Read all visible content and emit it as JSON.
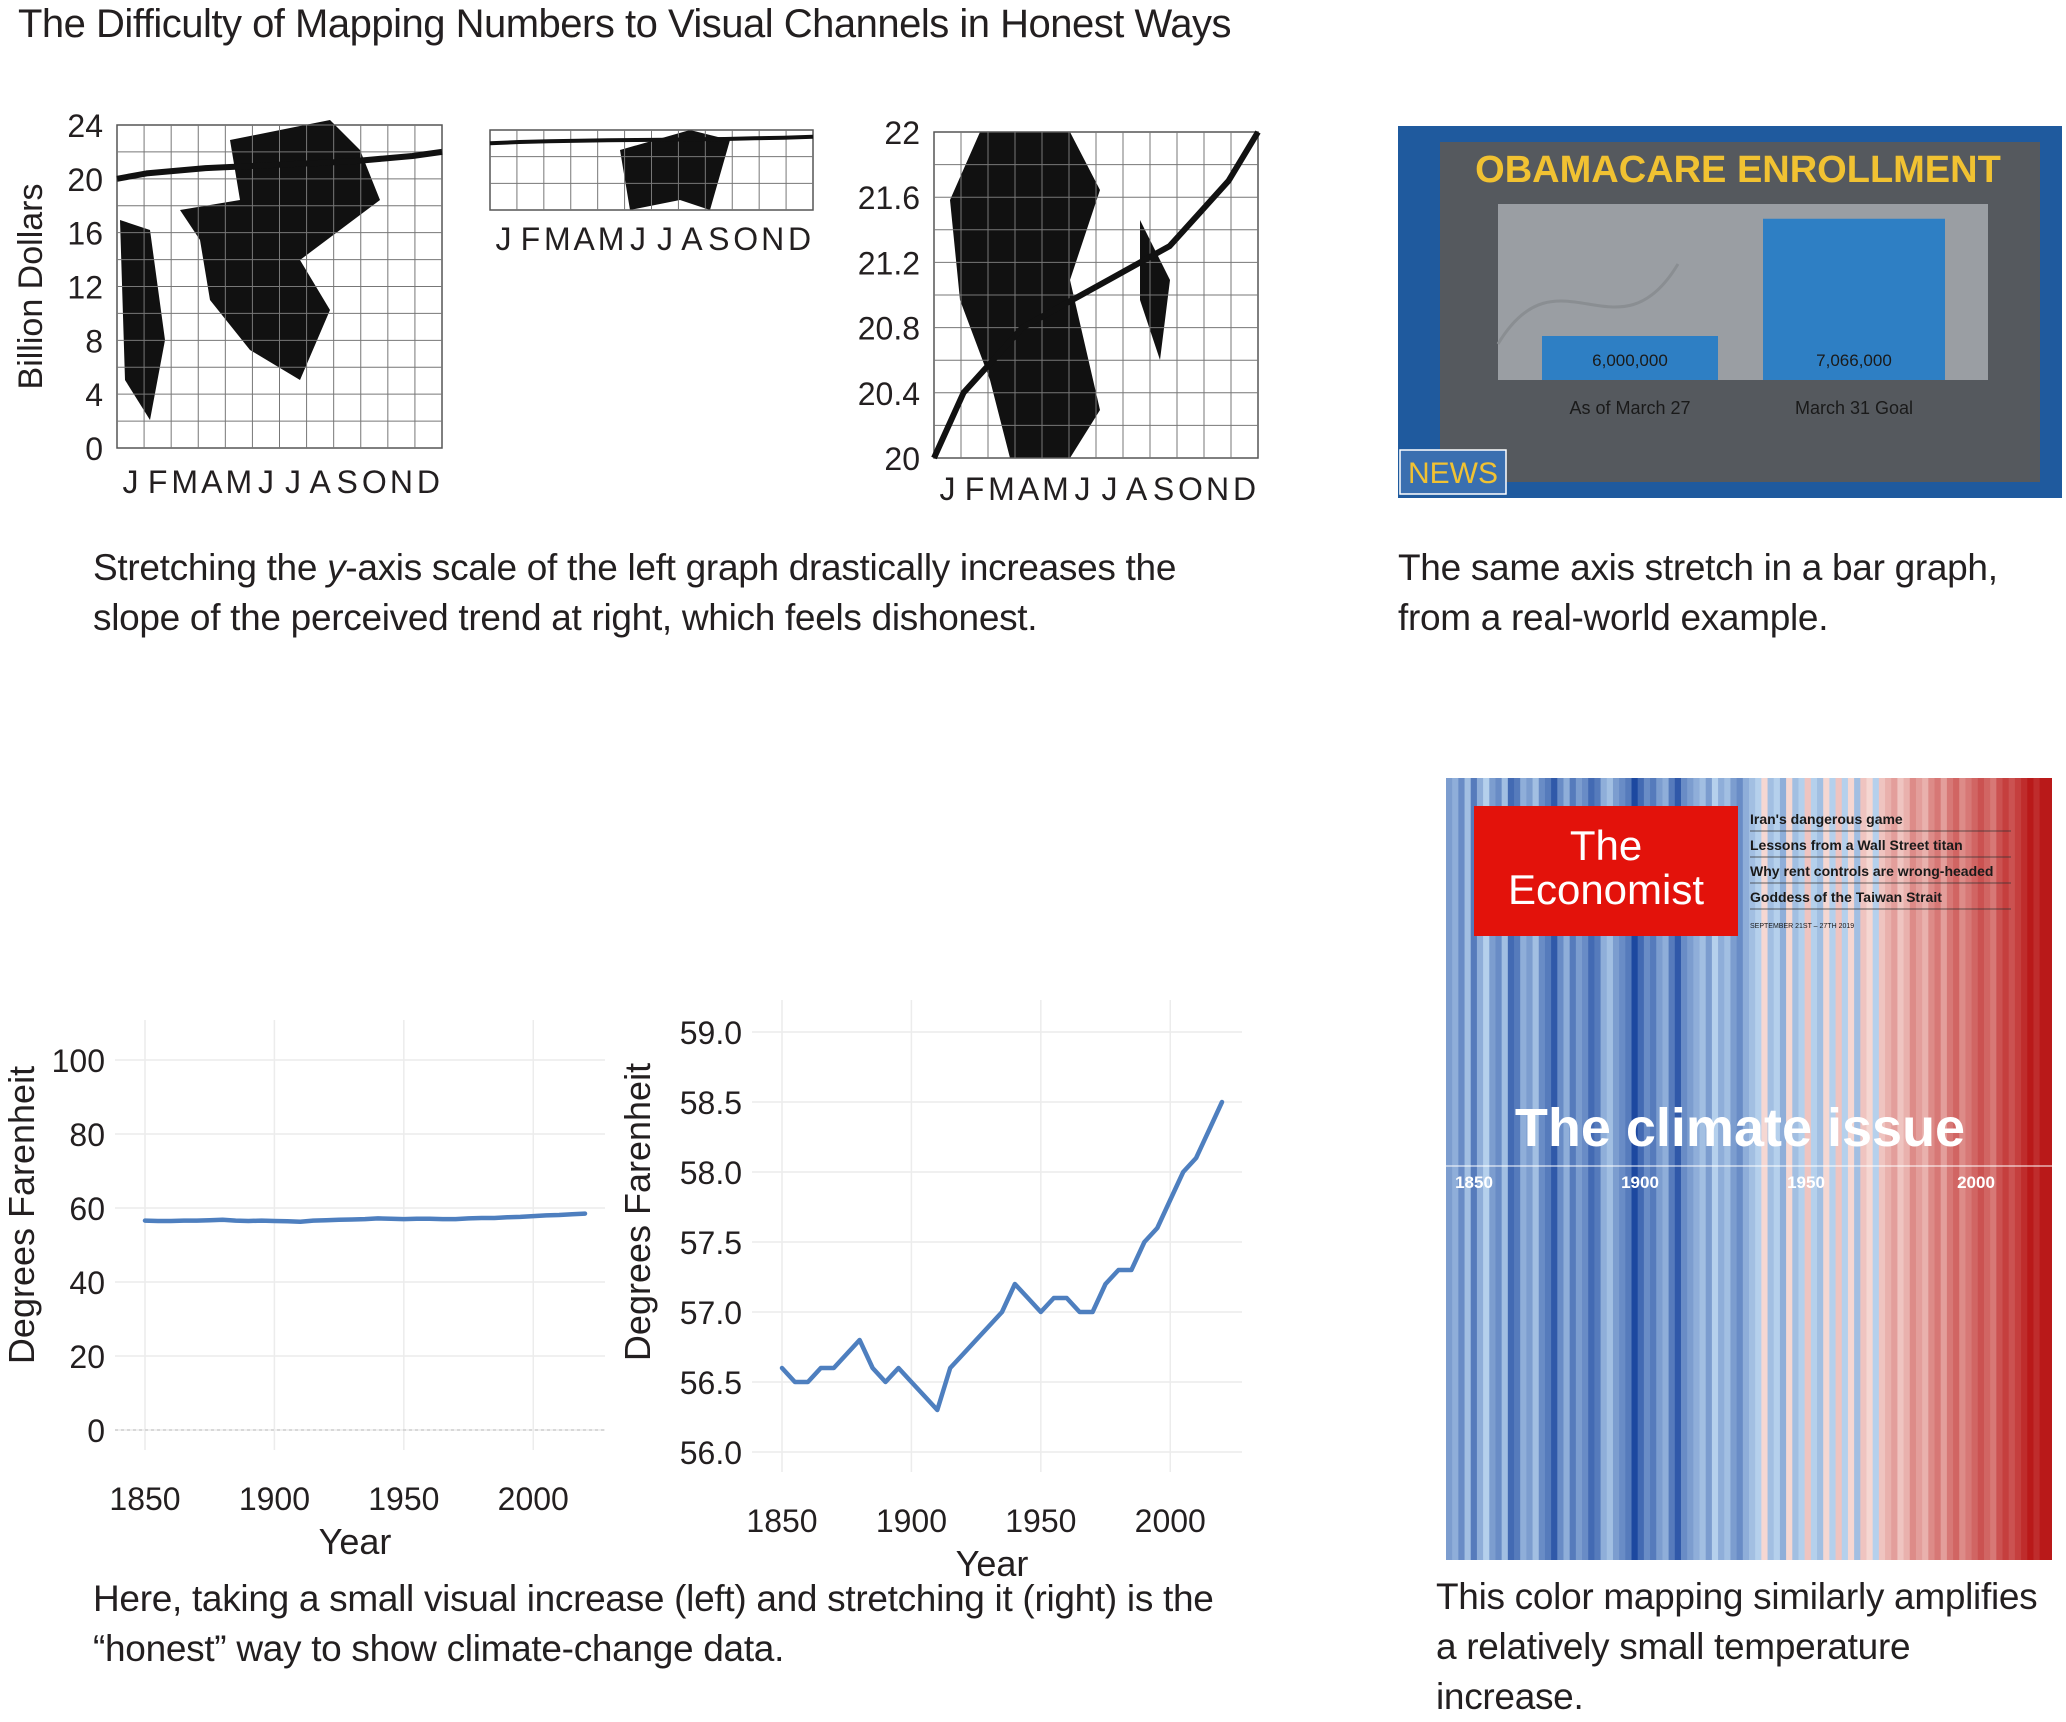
{
  "title": "The Difficulty of Mapping Numbers to Visual Channels in Honest Ways",
  "captions": {
    "top_left_pre": "Stretching the ",
    "top_left_italic": "y",
    "top_left_post": "-axis scale of the left graph drastically increases the slope of the perceived trend at right, which feels dishonest.",
    "top_right": "The same axis stretch in a bar graph, from a real-world example.",
    "bottom_left": "Here, taking a small visual increase (left) and stretching it (right) is the “honest” way to show climate-change data.",
    "bottom_right": "This color mapping similarly amplifies a relatively small temperature increase."
  },
  "news_graphic": {
    "headline": "OBAMACARE ENROLLMENT",
    "badge": "NEWS",
    "colors": {
      "frame": "#1f5a9e",
      "screen": "#55595e",
      "headline": "#f1c232",
      "bar": "#2e7fc4",
      "badge": "#3a6fb0"
    }
  },
  "economist_cover": {
    "masthead_line1": "The",
    "masthead_line2": "Economist",
    "headlines": [
      "Iran's dangerous game",
      "Lessons from a Wall Street titan",
      "Why rent controls are wrong-headed",
      "Goddess of the Taiwan Strait"
    ],
    "dateline": "SEPTEMBER 21ST – 27TH 2019",
    "cover_title": "The climate issue",
    "year_labels": [
      "1850",
      "1900",
      "1950",
      "2000"
    ],
    "masthead_color": "#e3120b",
    "stripes_anomaly": [
      -0.4,
      -0.3,
      -0.5,
      -0.2,
      -0.6,
      -0.3,
      -0.1,
      -0.4,
      -0.5,
      -0.2,
      -0.7,
      -0.6,
      -0.3,
      -0.4,
      -0.2,
      -0.5,
      -0.6,
      -0.8,
      -0.5,
      -0.3,
      -0.6,
      -0.4,
      -0.5,
      -0.7,
      -0.6,
      -0.3,
      -0.2,
      -0.4,
      -0.5,
      -0.6,
      -0.9,
      -0.7,
      -0.5,
      -0.6,
      -0.4,
      -0.3,
      -0.6,
      -0.8,
      -0.5,
      -0.4,
      -0.3,
      -0.2,
      -0.4,
      -0.1,
      -0.3,
      -0.2,
      -0.4,
      -0.5,
      -0.3,
      -0.2,
      -0.1,
      0.0,
      -0.2,
      -0.1,
      -0.3,
      0.0,
      -0.2,
      -0.1,
      0.1,
      -0.1,
      -0.2,
      0.0,
      -0.1,
      0.1,
      -0.1,
      0.0,
      -0.2,
      0.1,
      0.0,
      -0.1,
      0.1,
      0.2,
      0.3,
      0.1,
      0.2,
      0.4,
      0.3,
      0.2,
      0.4,
      0.5,
      0.3,
      0.5,
      0.6,
      0.4,
      0.5,
      0.6,
      0.7,
      0.6,
      0.5,
      0.7,
      0.8,
      0.7,
      0.8,
      0.9,
      1.0,
      0.9,
      1.0,
      1.0
    ]
  },
  "chart_data": [
    {
      "type": "line",
      "title": "",
      "ylabel": "Billion Dollars",
      "xlabel": "",
      "categories": [
        "J",
        "F",
        "M",
        "A",
        "M",
        "J",
        "J",
        "A",
        "S",
        "O",
        "N",
        "D"
      ],
      "yticks": [
        0,
        4,
        8,
        12,
        16,
        20,
        24
      ],
      "ylim": [
        0,
        24
      ],
      "grid": true,
      "series": [
        {
          "values": [
            20.0,
            20.4,
            20.6,
            20.8,
            20.9,
            21.0,
            21.1,
            21.2,
            21.3,
            21.5,
            21.7,
            22.0
          ]
        }
      ]
    },
    {
      "type": "line",
      "title": "",
      "categories": [
        "J",
        "F",
        "M",
        "A",
        "M",
        "J",
        "J",
        "A",
        "S",
        "O",
        "N",
        "D"
      ],
      "ylim": [
        0,
        24
      ],
      "grid": true,
      "series": [
        {
          "values": [
            20.0,
            20.4,
            20.6,
            20.8,
            20.9,
            21.0,
            21.1,
            21.2,
            21.3,
            21.5,
            21.7,
            22.0
          ]
        }
      ]
    },
    {
      "type": "line",
      "title": "",
      "categories": [
        "J",
        "F",
        "M",
        "A",
        "M",
        "J",
        "J",
        "A",
        "S",
        "O",
        "N",
        "D"
      ],
      "yticks": [
        "20",
        "20.4",
        "20.8",
        "21.2",
        "21.6",
        "22"
      ],
      "ylim": [
        20,
        22
      ],
      "grid": true,
      "series": [
        {
          "values": [
            20.0,
            20.4,
            20.6,
            20.8,
            20.9,
            21.0,
            21.1,
            21.2,
            21.3,
            21.5,
            21.7,
            22.0
          ]
        }
      ]
    },
    {
      "type": "bar",
      "title": "OBAMACARE ENROLLMENT",
      "categories": [
        "As of March 27",
        "March 31 Goal"
      ],
      "values": [
        6000000,
        7066000
      ],
      "value_labels": [
        "6,000,000",
        "7,066,000"
      ],
      "ylim": [
        5600000,
        7200000
      ]
    },
    {
      "type": "line",
      "ylabel": "Degrees Farenheit",
      "xlabel": "Year",
      "xticks": [
        1850,
        1900,
        1950,
        2000
      ],
      "yticks": [
        0,
        20,
        40,
        60,
        80,
        100
      ],
      "xlim": [
        1850,
        2020
      ],
      "ylim": [
        0,
        100
      ],
      "grid": true,
      "x": [
        1850,
        1855,
        1860,
        1865,
        1870,
        1875,
        1880,
        1885,
        1890,
        1895,
        1900,
        1905,
        1910,
        1915,
        1920,
        1925,
        1930,
        1935,
        1940,
        1945,
        1950,
        1955,
        1960,
        1965,
        1970,
        1975,
        1980,
        1985,
        1990,
        1995,
        2000,
        2005,
        2010,
        2015,
        2020
      ],
      "series": [
        {
          "values": [
            56.6,
            56.5,
            56.5,
            56.6,
            56.6,
            56.7,
            56.8,
            56.6,
            56.5,
            56.6,
            56.5,
            56.4,
            56.3,
            56.6,
            56.7,
            56.8,
            56.9,
            57.0,
            57.2,
            57.1,
            57.0,
            57.1,
            57.1,
            57.0,
            57.0,
            57.2,
            57.3,
            57.3,
            57.5,
            57.6,
            57.8,
            58.0,
            58.1,
            58.3,
            58.5
          ]
        }
      ]
    },
    {
      "type": "line",
      "ylabel": "Degrees Farenheit",
      "xlabel": "Year",
      "xticks": [
        1850,
        1900,
        1950,
        2000
      ],
      "yticks": [
        "56.0",
        "56.5",
        "57.0",
        "57.5",
        "58.0",
        "58.5",
        "59.0"
      ],
      "xlim": [
        1850,
        2020
      ],
      "ylim": [
        56.0,
        59.0
      ],
      "grid": true,
      "x": [
        1850,
        1855,
        1860,
        1865,
        1870,
        1875,
        1880,
        1885,
        1890,
        1895,
        1900,
        1905,
        1910,
        1915,
        1920,
        1925,
        1930,
        1935,
        1940,
        1945,
        1950,
        1955,
        1960,
        1965,
        1970,
        1975,
        1980,
        1985,
        1990,
        1995,
        2000,
        2005,
        2010,
        2015,
        2020
      ],
      "series": [
        {
          "values": [
            56.6,
            56.5,
            56.5,
            56.6,
            56.6,
            56.7,
            56.8,
            56.6,
            56.5,
            56.6,
            56.5,
            56.4,
            56.3,
            56.6,
            56.7,
            56.8,
            56.9,
            57.0,
            57.2,
            57.1,
            57.0,
            57.1,
            57.1,
            57.0,
            57.0,
            57.2,
            57.3,
            57.3,
            57.5,
            57.6,
            57.8,
            58.0,
            58.1,
            58.3,
            58.5
          ]
        }
      ]
    }
  ]
}
